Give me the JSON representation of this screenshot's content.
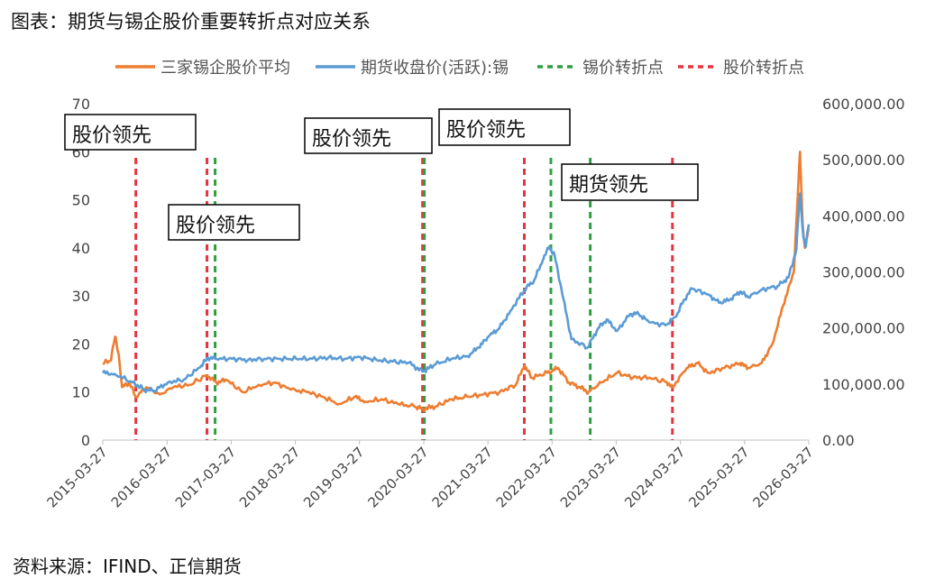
{
  "header": {
    "title": "图表：期货与锡企股价重要转折点对应关系"
  },
  "footer": {
    "source": "资料来源：IFIND、正信期货"
  },
  "chart_data": {
    "type": "line",
    "title": "",
    "legend_position": "top",
    "legend": [
      "三家锡企股价平均",
      "期货收盘价(活跃):锡",
      "锡价转折点",
      "股价转折点"
    ],
    "y_left": {
      "min": 0,
      "max": 70,
      "ticks": [
        "0",
        "10",
        "20",
        "30",
        "40",
        "50",
        "60",
        "70"
      ]
    },
    "y_right": {
      "min": 0,
      "max": 600000,
      "ticks": [
        "0.00",
        "100,000.00",
        "200,000.00",
        "300,000.00",
        "400,000.00",
        "500,000.00",
        "600,000.00"
      ]
    },
    "x_range": [
      "2015-03-27",
      "2026-03-27"
    ],
    "x_ticks": [
      "2015-03-27",
      "2016-03-27",
      "2017-03-27",
      "2018-03-27",
      "2019-03-27",
      "2020-03-27",
      "2021-03-27",
      "2022-03-27",
      "2023-03-27",
      "2024-03-27",
      "2025-03-27",
      "2026-03-27"
    ],
    "series": [
      {
        "name": "三家锡企股价平均",
        "axis": "left",
        "color": "#ED7D31",
        "points": [
          [
            "2015-03-27",
            16
          ],
          [
            "2015-05-10",
            16.5
          ],
          [
            "2015-06-05",
            21.5
          ],
          [
            "2015-06-25",
            18
          ],
          [
            "2015-07-15",
            11
          ],
          [
            "2015-08-25",
            12
          ],
          [
            "2015-09-30",
            9
          ],
          [
            "2015-12-01",
            11
          ],
          [
            "2016-02-15",
            9.5
          ],
          [
            "2016-05-01",
            11
          ],
          [
            "2016-08-01",
            11.5
          ],
          [
            "2016-11-09",
            13.5
          ],
          [
            "2017-01-01",
            12
          ],
          [
            "2017-03-01",
            12.5
          ],
          [
            "2017-06-01",
            10
          ],
          [
            "2017-09-01",
            11.5
          ],
          [
            "2017-12-01",
            12
          ],
          [
            "2018-03-01",
            10.5
          ],
          [
            "2018-06-01",
            10
          ],
          [
            "2018-09-01",
            9
          ],
          [
            "2018-12-01",
            7.5
          ],
          [
            "2019-03-01",
            9
          ],
          [
            "2019-05-01",
            8
          ],
          [
            "2019-08-01",
            8.5
          ],
          [
            "2019-11-01",
            7.5
          ],
          [
            "2020-02-01",
            7
          ],
          [
            "2020-03-20",
            6.5
          ],
          [
            "2020-06-01",
            7
          ],
          [
            "2020-09-01",
            8.5
          ],
          [
            "2020-12-01",
            9
          ],
          [
            "2021-03-01",
            9.5
          ],
          [
            "2021-06-01",
            10
          ],
          [
            "2021-09-01",
            11.5
          ],
          [
            "2021-10-20",
            15.5
          ],
          [
            "2021-12-01",
            13
          ],
          [
            "2022-03-01",
            14
          ],
          [
            "2022-05-01",
            15
          ],
          [
            "2022-07-01",
            12
          ],
          [
            "2022-09-01",
            11
          ],
          [
            "2022-10-20",
            10
          ],
          [
            "2023-01-01",
            12
          ],
          [
            "2023-04-01",
            14
          ],
          [
            "2023-07-01",
            13
          ],
          [
            "2023-10-01",
            13
          ],
          [
            "2024-01-10",
            12
          ],
          [
            "2024-02-10",
            11
          ],
          [
            "2024-05-01",
            15
          ],
          [
            "2024-07-01",
            16
          ],
          [
            "2024-09-01",
            14
          ],
          [
            "2024-12-01",
            15
          ],
          [
            "2025-03-01",
            16
          ],
          [
            "2025-04-15",
            15
          ],
          [
            "2025-07-01",
            16
          ],
          [
            "2025-09-01",
            20
          ],
          [
            "2025-11-01",
            28
          ],
          [
            "2026-01-01",
            35
          ],
          [
            "2026-02-05",
            60
          ],
          [
            "2026-02-20",
            45
          ],
          [
            "2026-03-05",
            40
          ],
          [
            "2026-03-27",
            44
          ]
        ]
      },
      {
        "name": "期货收盘价(活跃):锡",
        "axis": "right",
        "color": "#5B9BD5",
        "points": [
          [
            "2015-03-27",
            120000
          ],
          [
            "2015-06-01",
            118000
          ],
          [
            "2015-09-01",
            105000
          ],
          [
            "2015-11-20",
            90000
          ],
          [
            "2016-01-15",
            88000
          ],
          [
            "2016-04-01",
            103000
          ],
          [
            "2016-07-01",
            108000
          ],
          [
            "2016-10-01",
            130000
          ],
          [
            "2016-11-15",
            147000
          ],
          [
            "2017-01-01",
            145000
          ],
          [
            "2017-04-01",
            145000
          ],
          [
            "2017-07-01",
            143000
          ],
          [
            "2017-10-01",
            145000
          ],
          [
            "2018-01-01",
            145000
          ],
          [
            "2018-04-01",
            145000
          ],
          [
            "2018-07-01",
            145000
          ],
          [
            "2018-10-01",
            147000
          ],
          [
            "2019-01-01",
            145000
          ],
          [
            "2019-04-01",
            148000
          ],
          [
            "2019-07-01",
            143000
          ],
          [
            "2019-10-01",
            140000
          ],
          [
            "2020-01-01",
            138000
          ],
          [
            "2020-03-20",
            122000
          ],
          [
            "2020-06-01",
            135000
          ],
          [
            "2020-09-01",
            145000
          ],
          [
            "2020-12-01",
            150000
          ],
          [
            "2021-02-01",
            165000
          ],
          [
            "2021-04-01",
            185000
          ],
          [
            "2021-06-01",
            200000
          ],
          [
            "2021-08-01",
            230000
          ],
          [
            "2021-10-20",
            268000
          ],
          [
            "2021-12-15",
            285000
          ],
          [
            "2022-02-01",
            320000
          ],
          [
            "2022-03-10",
            345000
          ],
          [
            "2022-04-10",
            330000
          ],
          [
            "2022-06-01",
            250000
          ],
          [
            "2022-07-15",
            180000
          ],
          [
            "2022-10-15",
            165000
          ],
          [
            "2022-12-15",
            200000
          ],
          [
            "2023-02-01",
            215000
          ],
          [
            "2023-04-01",
            195000
          ],
          [
            "2023-06-15",
            225000
          ],
          [
            "2023-08-01",
            225000
          ],
          [
            "2023-10-01",
            210000
          ],
          [
            "2024-01-01",
            205000
          ],
          [
            "2024-03-01",
            220000
          ],
          [
            "2024-04-15",
            250000
          ],
          [
            "2024-06-01",
            270000
          ],
          [
            "2024-09-01",
            260000
          ],
          [
            "2024-11-01",
            245000
          ],
          [
            "2025-01-01",
            250000
          ],
          [
            "2025-03-01",
            265000
          ],
          [
            "2025-04-15",
            255000
          ],
          [
            "2025-07-01",
            268000
          ],
          [
            "2025-10-01",
            275000
          ],
          [
            "2025-12-01",
            290000
          ],
          [
            "2026-01-15",
            340000
          ],
          [
            "2026-02-05",
            440000
          ],
          [
            "2026-02-25",
            360000
          ],
          [
            "2026-03-10",
            345000
          ],
          [
            "2026-03-27",
            385000
          ]
        ]
      }
    ],
    "tin_turning_points": [
      "2016-12-15",
      "2020-03-20",
      "2022-03-10",
      "2022-10-20"
    ],
    "stock_turning_points": [
      "2015-10-01",
      "2016-11-09",
      "2020-03-20",
      "2021-10-20",
      "2024-02-10"
    ],
    "annotations": [
      "股价领先",
      "股价领先",
      "股价领先",
      "股价领先",
      "期货领先"
    ]
  }
}
